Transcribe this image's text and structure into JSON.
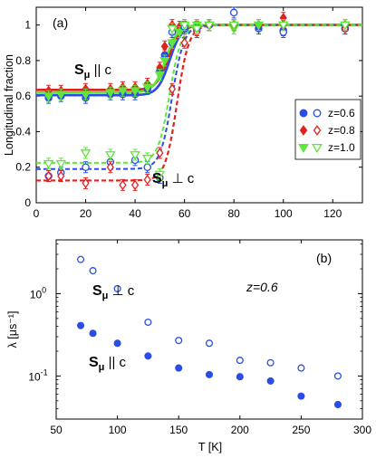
{
  "chart_data": [
    {
      "type": "scatter",
      "tag": "(a)",
      "ylabel": "Longitudinal fraction",
      "xlim": [
        0,
        132
      ],
      "ylim": [
        0,
        1.1
      ],
      "xticks": [
        0,
        20,
        40,
        60,
        80,
        100,
        120
      ],
      "yticks": [
        0,
        0.2,
        0.4,
        0.6,
        0.8,
        1
      ],
      "ytick_labels": [
        "0",
        "0.2",
        "0.4",
        "0.6",
        "0.8",
        "1"
      ],
      "annotations": [
        {
          "id": "par",
          "main": "S",
          "sub": "μ",
          "rel": " || c"
        },
        {
          "id": "perp",
          "main": "S",
          "sub": "μ",
          "rel": " ⊥ c"
        }
      ],
      "legend": {
        "placement": "right",
        "entries": [
          {
            "label": "z=0.6",
            "color": "#2b4de6",
            "marker": "circle"
          },
          {
            "label": "z=0.8",
            "color": "#e32020",
            "marker": "diamond"
          },
          {
            "label": "z=1.0",
            "color": "#5ee63a",
            "marker": "triangle-down"
          }
        ]
      },
      "series": [
        {
          "key": "z06_par",
          "color": "#2b4de6",
          "marker": "circle",
          "filled": true,
          "x": [
            5,
            10,
            20,
            30,
            35,
            40,
            45,
            50,
            52,
            55,
            58,
            60,
            65,
            70,
            80,
            90,
            100,
            125
          ],
          "y": [
            0.59,
            0.6,
            0.59,
            0.61,
            0.61,
            0.61,
            0.64,
            0.74,
            0.83,
            0.9,
            0.97,
            0.98,
            0.99,
            1.0,
            1.0,
            0.98,
            0.97,
            0.98
          ]
        },
        {
          "key": "z08_par",
          "color": "#e32020",
          "marker": "diamond",
          "filled": true,
          "x": [
            5,
            10,
            20,
            30,
            35,
            40,
            45,
            50,
            52,
            55,
            58,
            60,
            65,
            70,
            80,
            90,
            100,
            125
          ],
          "y": [
            0.63,
            0.63,
            0.64,
            0.64,
            0.65,
            0.65,
            0.67,
            0.76,
            0.88,
            1.0,
            0.99,
            1.0,
            1.0,
            1.0,
            1.0,
            1.0,
            1.04,
            1.0
          ]
        },
        {
          "key": "z10_par",
          "color": "#5ee63a",
          "marker": "triangle-down",
          "filled": true,
          "x": [
            5,
            10,
            20,
            30,
            35,
            40,
            45,
            50,
            52,
            55,
            58,
            60,
            65,
            70,
            80,
            90,
            100,
            125
          ],
          "y": [
            0.6,
            0.61,
            0.61,
            0.62,
            0.63,
            0.63,
            0.65,
            0.72,
            0.8,
            0.9,
            0.96,
            0.99,
            1.0,
            1.0,
            0.98,
            1.0,
            1.0,
            1.0
          ]
        },
        {
          "key": "z06_perp",
          "color": "#2b4de6",
          "marker": "circle",
          "filled": false,
          "x": [
            5,
            10,
            20,
            30,
            40,
            45,
            50,
            55,
            60,
            65,
            70,
            80,
            100,
            125
          ],
          "y": [
            0.15,
            0.17,
            0.2,
            0.23,
            0.24,
            0.2,
            0.14,
            0.96,
            0.99,
            0.97,
            1.0,
            1.07,
            0.96,
            0.98
          ]
        },
        {
          "key": "z08_perp",
          "color": "#e32020",
          "marker": "diamond",
          "filled": false,
          "x": [
            5,
            10,
            20,
            30,
            35,
            40,
            45,
            50,
            55,
            60,
            65,
            70,
            80,
            100,
            125
          ],
          "y": [
            0.15,
            0.15,
            0.11,
            0.2,
            0.1,
            0.1,
            0.13,
            0.28,
            0.64,
            0.9,
            0.96,
            1.0,
            1.0,
            1.0,
            0.98
          ]
        },
        {
          "key": "z10_perp",
          "color": "#5ee63a",
          "marker": "triangle-down",
          "filled": false,
          "x": [
            5,
            10,
            20,
            30,
            40,
            45,
            50,
            55,
            60,
            65,
            70,
            80,
            100,
            125
          ],
          "y": [
            0.22,
            0.22,
            0.28,
            0.27,
            0.27,
            0.25,
            0.16,
            0.98,
            1.0,
            0.98,
            1.0,
            1.0,
            1.0,
            1.0
          ]
        }
      ],
      "fits": [
        {
          "color": "#2b4de6",
          "style": "solid",
          "low": 0.605,
          "high": 1.0,
          "tc": 54,
          "width": 2.7
        },
        {
          "color": "#e32020",
          "style": "solid",
          "low": 0.635,
          "high": 1.0,
          "tc": 53.5,
          "width": 2.7
        },
        {
          "color": "#5ee63a",
          "style": "solid",
          "low": 0.62,
          "high": 1.0,
          "tc": 52.5,
          "width": 2.7
        },
        {
          "color": "#2b4de6",
          "style": "dashed",
          "low": 0.19,
          "high": 1.0,
          "tc": 55,
          "width": 2.0
        },
        {
          "color": "#e32020",
          "style": "dashed",
          "low": 0.125,
          "high": 1.0,
          "tc": 57,
          "width": 2.2
        },
        {
          "color": "#5ee63a",
          "style": "dashed",
          "low": 0.225,
          "high": 1.0,
          "tc": 54,
          "width": 2.0
        }
      ]
    },
    {
      "type": "scatter",
      "tag": "(b)",
      "yscale": "log",
      "xlabel": "T [K]",
      "ylabel": "λ [μs⁻¹]",
      "xlim": [
        50,
        300
      ],
      "ylim": [
        0.03,
        4.5
      ],
      "xticks": [
        50,
        100,
        150,
        200,
        250,
        300
      ],
      "yticks": [
        0.1,
        1
      ],
      "ytick_labels": [
        {
          "base": "10",
          "exp": "-1"
        },
        {
          "base": "10",
          "exp": "0"
        }
      ],
      "annotations": [
        {
          "id": "z",
          "text": "z=0.6"
        },
        {
          "id": "perp",
          "main": "S",
          "sub": "μ",
          "rel": " ⊥ c"
        },
        {
          "id": "par",
          "main": "S",
          "sub": "μ",
          "rel": " || c"
        }
      ],
      "series": [
        {
          "key": "perp",
          "color": "#2b4de6",
          "marker": "circle",
          "filled": false,
          "x": [
            70,
            80,
            100,
            125,
            150,
            175,
            200,
            225,
            250,
            280
          ],
          "y": [
            2.6,
            1.9,
            1.15,
            0.45,
            0.27,
            0.25,
            0.155,
            0.145,
            0.125,
            0.1
          ]
        },
        {
          "key": "par",
          "color": "#2b4de6",
          "marker": "circle",
          "filled": true,
          "x": [
            70,
            80,
            100,
            125,
            150,
            175,
            200,
            225,
            250,
            280
          ],
          "y": [
            0.41,
            0.33,
            0.25,
            0.175,
            0.125,
            0.104,
            0.098,
            0.087,
            0.057,
            0.045
          ]
        }
      ]
    }
  ]
}
